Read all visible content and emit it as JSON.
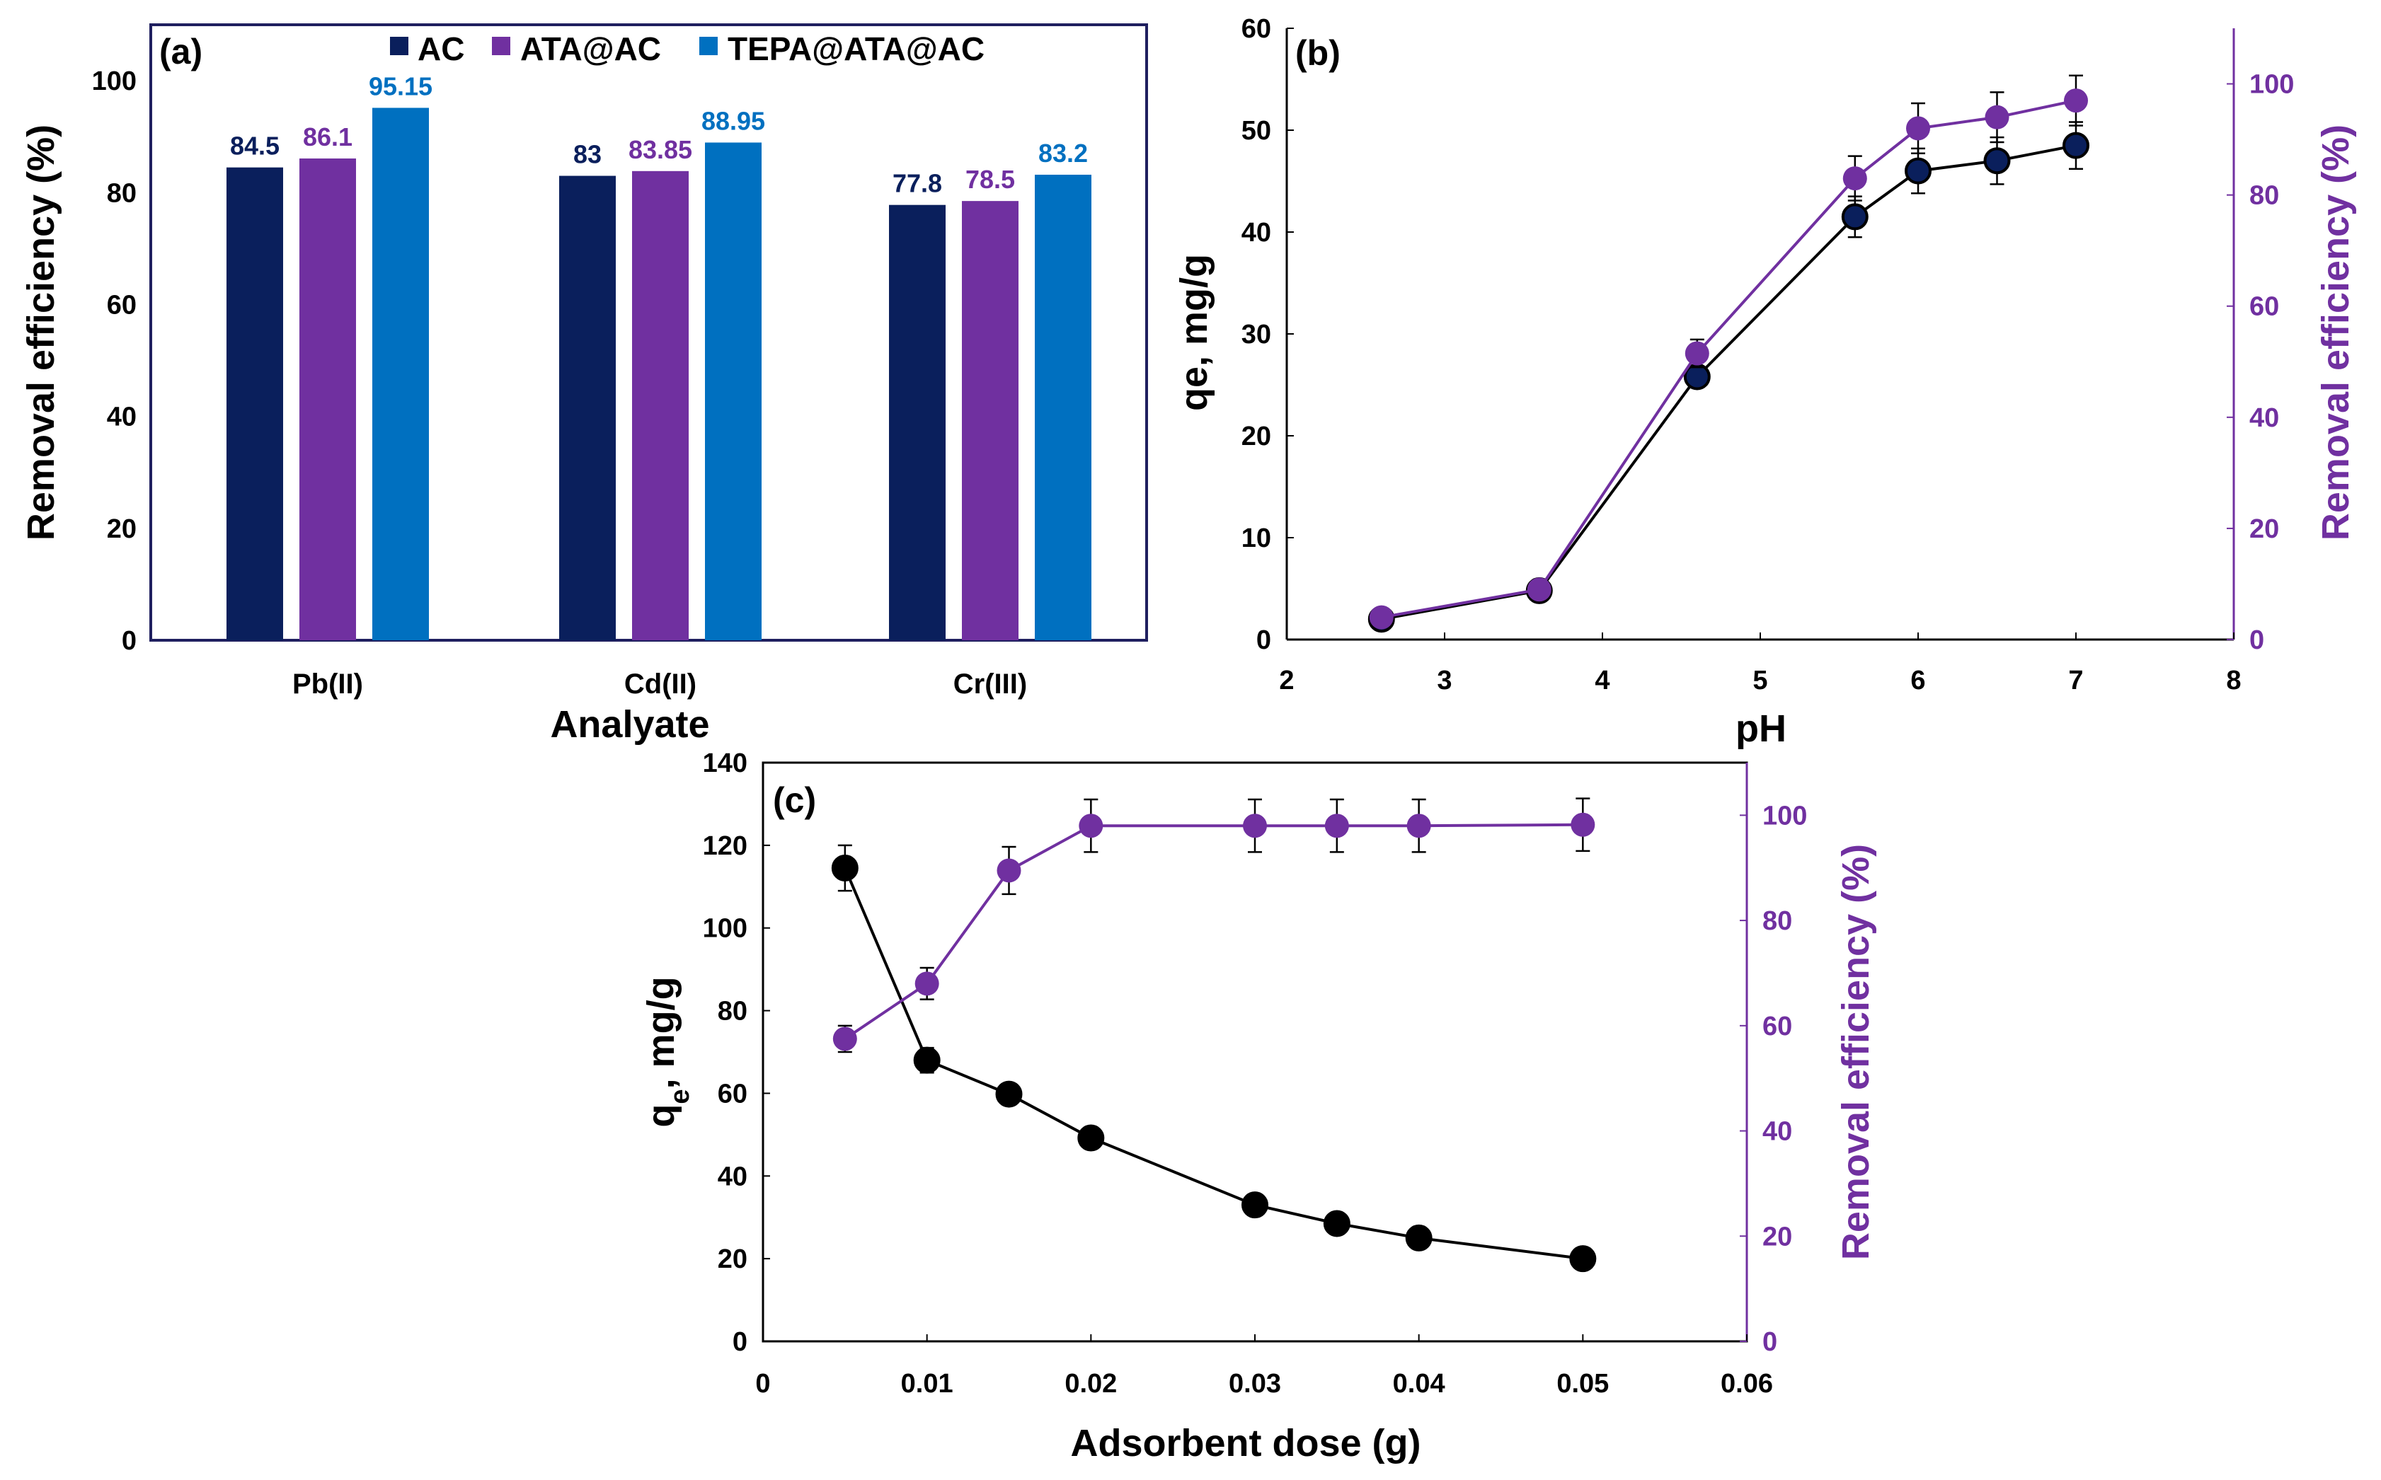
{
  "colors": {
    "ac": "#0a1f5c",
    "ata": "#7030a0",
    "tepa": "#0070c0",
    "black": "#000000",
    "purple": "#7030a0",
    "frame_blue": "#1f1f5f"
  },
  "chart_data": [
    {
      "id": "a",
      "type": "bar",
      "panel_label": "(a)",
      "xlabel": "Analyate",
      "ylabel": "Removal efficiency (%)",
      "ylim": [
        0,
        110
      ],
      "yticks": [
        "0",
        "20",
        "40",
        "60",
        "80",
        "100"
      ],
      "categories": [
        "Pb(II)",
        "Cd(II)",
        "Cr(III)"
      ],
      "legend_position": "top-center",
      "series": [
        {
          "name": "AC",
          "values": [
            84.5,
            83,
            77.8
          ],
          "labels": [
            "84.5",
            "83",
            "77.8"
          ]
        },
        {
          "name": "ATA@AC",
          "values": [
            86.1,
            83.85,
            78.5
          ],
          "labels": [
            "86.1",
            "83.85",
            "78.5"
          ]
        },
        {
          "name": "TEPA@ATA@AC",
          "values": [
            95.15,
            88.95,
            83.2
          ],
          "labels": [
            "95.15",
            "88.95",
            "83.2"
          ]
        }
      ]
    },
    {
      "id": "b",
      "type": "line",
      "panel_label": "(b)",
      "xlabel": "pH",
      "ylabel_left": "qe, mg/g",
      "ylabel_right": "Removal efficiency (%)",
      "xlim": [
        2,
        8
      ],
      "ylim_left": [
        0,
        60
      ],
      "ylim_right": [
        0,
        110
      ],
      "xticks": [
        "2",
        "3",
        "4",
        "5",
        "6",
        "7",
        "8"
      ],
      "yticks_left": [
        "0",
        "10",
        "20",
        "30",
        "40",
        "50",
        "60"
      ],
      "yticks_right": [
        "0",
        "20",
        "40",
        "60",
        "80",
        "100"
      ],
      "series": [
        {
          "name": "qe",
          "axis": "left",
          "x": [
            2.6,
            3.6,
            4.6,
            5.6,
            6.0,
            6.5,
            7.0
          ],
          "y": [
            2.0,
            4.8,
            25.8,
            41.5,
            46.0,
            47.0,
            48.5
          ],
          "err": [
            0.4,
            0.6,
            1.0,
            2.0,
            2.2,
            2.3,
            2.3
          ]
        },
        {
          "name": "Removal efficiency",
          "axis": "right",
          "x": [
            2.6,
            3.6,
            4.6,
            5.6,
            6.0,
            6.5,
            7.0
          ],
          "y": [
            4.0,
            9.0,
            51.5,
            83.0,
            92.0,
            94.0,
            97.0
          ],
          "err": [
            0.8,
            1.0,
            2.5,
            4.0,
            4.5,
            4.5,
            4.5
          ]
        }
      ]
    },
    {
      "id": "c",
      "type": "line",
      "panel_label": "(c)",
      "xlabel": "Adsorbent dose (g)",
      "ylabel_left": "qe, mg/g",
      "ylabel_left_main": "q",
      "ylabel_left_sub": "e",
      "ylabel_left_rest": ", mg/g",
      "ylabel_right": "Removal efficiency (%)",
      "xlim": [
        0,
        0.06
      ],
      "ylim_left": [
        0,
        140
      ],
      "ylim_right": [
        0,
        110
      ],
      "xticks": [
        "0",
        "0.01",
        "0.02",
        "0.03",
        "0.04",
        "0.05",
        "0.06"
      ],
      "yticks_left": [
        "0",
        "20",
        "40",
        "60",
        "80",
        "100",
        "120",
        "140"
      ],
      "yticks_right": [
        "0",
        "20",
        "40",
        "60",
        "80",
        "100"
      ],
      "series": [
        {
          "name": "qe",
          "axis": "left",
          "x": [
            0.005,
            0.01,
            0.015,
            0.02,
            0.03,
            0.035,
            0.04,
            0.05
          ],
          "y": [
            114.5,
            68.0,
            59.8,
            49.2,
            33.0,
            28.5,
            25.0,
            20.0
          ],
          "err": [
            5.5,
            3.0,
            2.5,
            1.5,
            1.2,
            1.0,
            1.0,
            0.8
          ]
        },
        {
          "name": "Removal efficiency",
          "axis": "right",
          "x": [
            0.005,
            0.01,
            0.015,
            0.02,
            0.03,
            0.035,
            0.04,
            0.05
          ],
          "y": [
            57.5,
            68.0,
            89.5,
            98.0,
            98.0,
            98.0,
            98.0,
            98.2
          ],
          "err": [
            2.5,
            3.0,
            4.5,
            5.0,
            5.0,
            5.0,
            5.0,
            5.0
          ]
        }
      ]
    }
  ]
}
